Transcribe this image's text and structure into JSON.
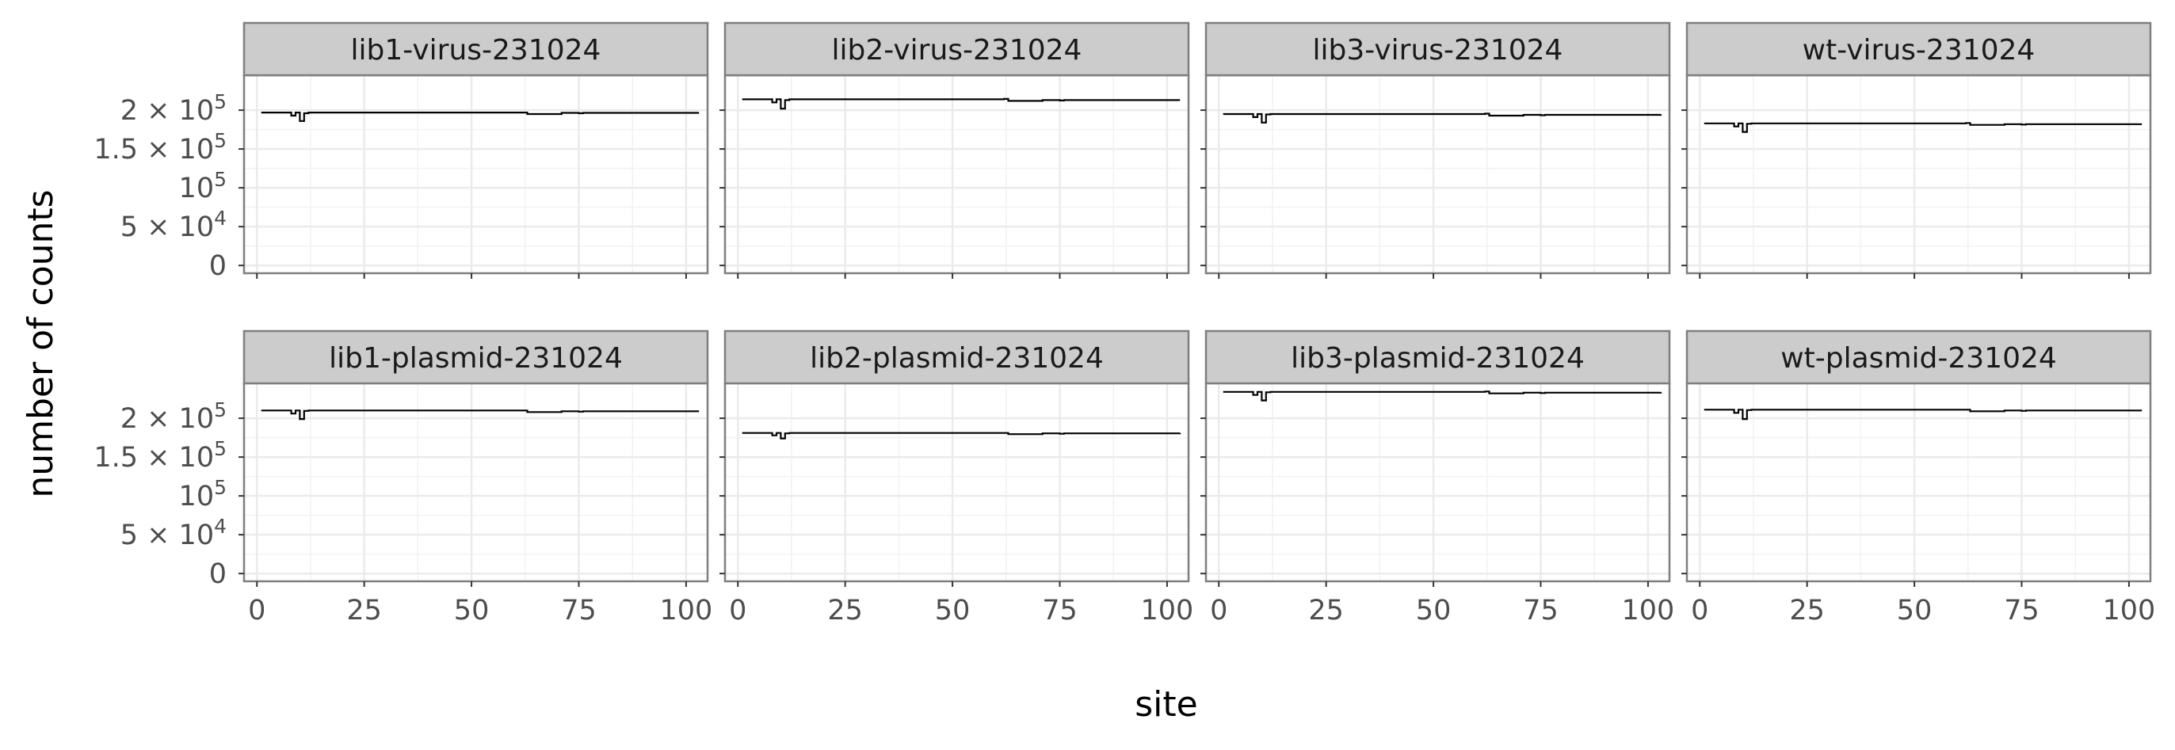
{
  "chart_data": {
    "type": "line",
    "layout": "faceted 2 rows x 4 columns, shared axes",
    "xlabel": "site",
    "ylabel": "number of counts",
    "xlim": [
      -3,
      105
    ],
    "ylim": [
      -10000,
      245000
    ],
    "x_ticks": [
      {
        "value": 0,
        "label": "0"
      },
      {
        "value": 25,
        "label": "25"
      },
      {
        "value": 50,
        "label": "50"
      },
      {
        "value": 75,
        "label": "75"
      },
      {
        "value": 100,
        "label": "100"
      }
    ],
    "y_ticks": [
      {
        "value": 0,
        "base": "0",
        "exp": ""
      },
      {
        "value": 50000,
        "base": "5 × 10",
        "exp": "4"
      },
      {
        "value": 100000,
        "base": "10",
        "exp": "5"
      },
      {
        "value": 150000,
        "base": "1.5 × 10",
        "exp": "5"
      },
      {
        "value": 200000,
        "base": "2 × 10",
        "exp": "5"
      }
    ],
    "grid": true,
    "theme": "bw",
    "line_color": "#000000",
    "strip_fill": "#cccccc",
    "facets": [
      {
        "label": "lib1-virus-231024",
        "x": [
          1,
          7,
          8,
          9,
          10,
          11,
          12,
          62,
          63,
          70,
          71,
          75,
          76,
          103
        ],
        "y": [
          197000,
          197000,
          193000,
          197000,
          186000,
          196000,
          197000,
          197000,
          195000,
          195000,
          196500,
          196000,
          196500,
          196500
        ]
      },
      {
        "label": "lib2-virus-231024",
        "x": [
          1,
          7,
          8,
          9,
          10,
          11,
          12,
          62,
          63,
          70,
          71,
          75,
          76,
          103
        ],
        "y": [
          214000,
          214000,
          210000,
          214000,
          202000,
          213000,
          214000,
          214500,
          212000,
          212000,
          213000,
          212500,
          213000,
          213000
        ]
      },
      {
        "label": "lib3-virus-231024",
        "x": [
          1,
          7,
          8,
          9,
          10,
          11,
          12,
          62,
          63,
          70,
          71,
          75,
          76,
          103
        ],
        "y": [
          195000,
          195000,
          191000,
          195000,
          184000,
          194500,
          195000,
          195500,
          193000,
          193000,
          194000,
          193500,
          194000,
          194500
        ]
      },
      {
        "label": "wt-virus-231024",
        "x": [
          1,
          7,
          8,
          9,
          10,
          11,
          12,
          62,
          63,
          70,
          71,
          75,
          76,
          103
        ],
        "y": [
          183000,
          183000,
          179000,
          183000,
          172000,
          182500,
          183000,
          183500,
          181000,
          181000,
          182000,
          181500,
          182000,
          182000
        ]
      },
      {
        "label": "lib1-plasmid-231024",
        "x": [
          1,
          7,
          8,
          9,
          10,
          11,
          12,
          62,
          63,
          70,
          71,
          75,
          76,
          103
        ],
        "y": [
          210000,
          210000,
          206000,
          210000,
          199000,
          209500,
          210000,
          210000,
          208000,
          208000,
          209000,
          208500,
          209000,
          209000
        ]
      },
      {
        "label": "lib2-plasmid-231024",
        "x": [
          1,
          7,
          8,
          9,
          10,
          11,
          12,
          62,
          63,
          70,
          71,
          75,
          76,
          103
        ],
        "y": [
          181000,
          181000,
          178000,
          181000,
          174000,
          180500,
          181000,
          181000,
          179500,
          179500,
          180500,
          180000,
          180500,
          181000
        ]
      },
      {
        "label": "lib3-plasmid-231024",
        "x": [
          1,
          7,
          8,
          9,
          10,
          11,
          12,
          62,
          63,
          70,
          71,
          75,
          76,
          103
        ],
        "y": [
          234000,
          234000,
          230000,
          234000,
          223000,
          233500,
          234000,
          234500,
          232000,
          232000,
          233000,
          232500,
          233000,
          233500
        ]
      },
      {
        "label": "wt-plasmid-231024",
        "x": [
          1,
          7,
          8,
          9,
          10,
          11,
          12,
          62,
          63,
          70,
          71,
          75,
          76,
          103
        ],
        "y": [
          211000,
          211000,
          207000,
          211000,
          199000,
          210500,
          211000,
          211000,
          209000,
          209000,
          210000,
          209500,
          210000,
          210000
        ]
      }
    ]
  }
}
